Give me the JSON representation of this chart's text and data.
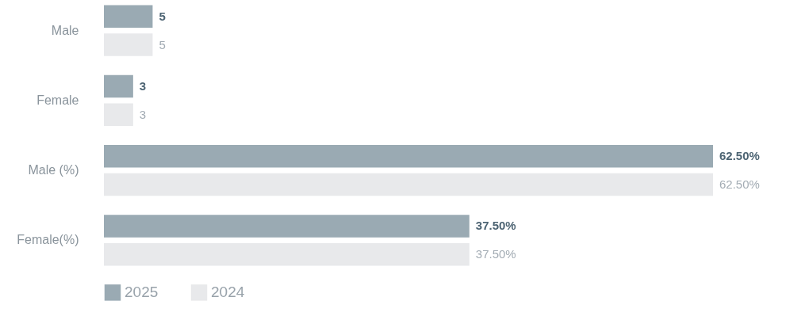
{
  "chart_data": {
    "type": "bar",
    "orientation": "horizontal",
    "categories": [
      "Male",
      "Female",
      "Male (%)",
      "Female(%)"
    ],
    "series": [
      {
        "name": "2025",
        "color": "#9aaab3",
        "values": [
          5,
          3,
          62.5,
          37.5
        ],
        "value_labels": [
          "5",
          "3",
          "62.50%",
          "37.50%"
        ]
      },
      {
        "name": "2024",
        "color": "#e8e9eb",
        "values": [
          5,
          3,
          62.5,
          37.5
        ],
        "value_labels": [
          "5",
          "3",
          "62.50%",
          "37.50%"
        ]
      }
    ],
    "legend": "bottom"
  }
}
